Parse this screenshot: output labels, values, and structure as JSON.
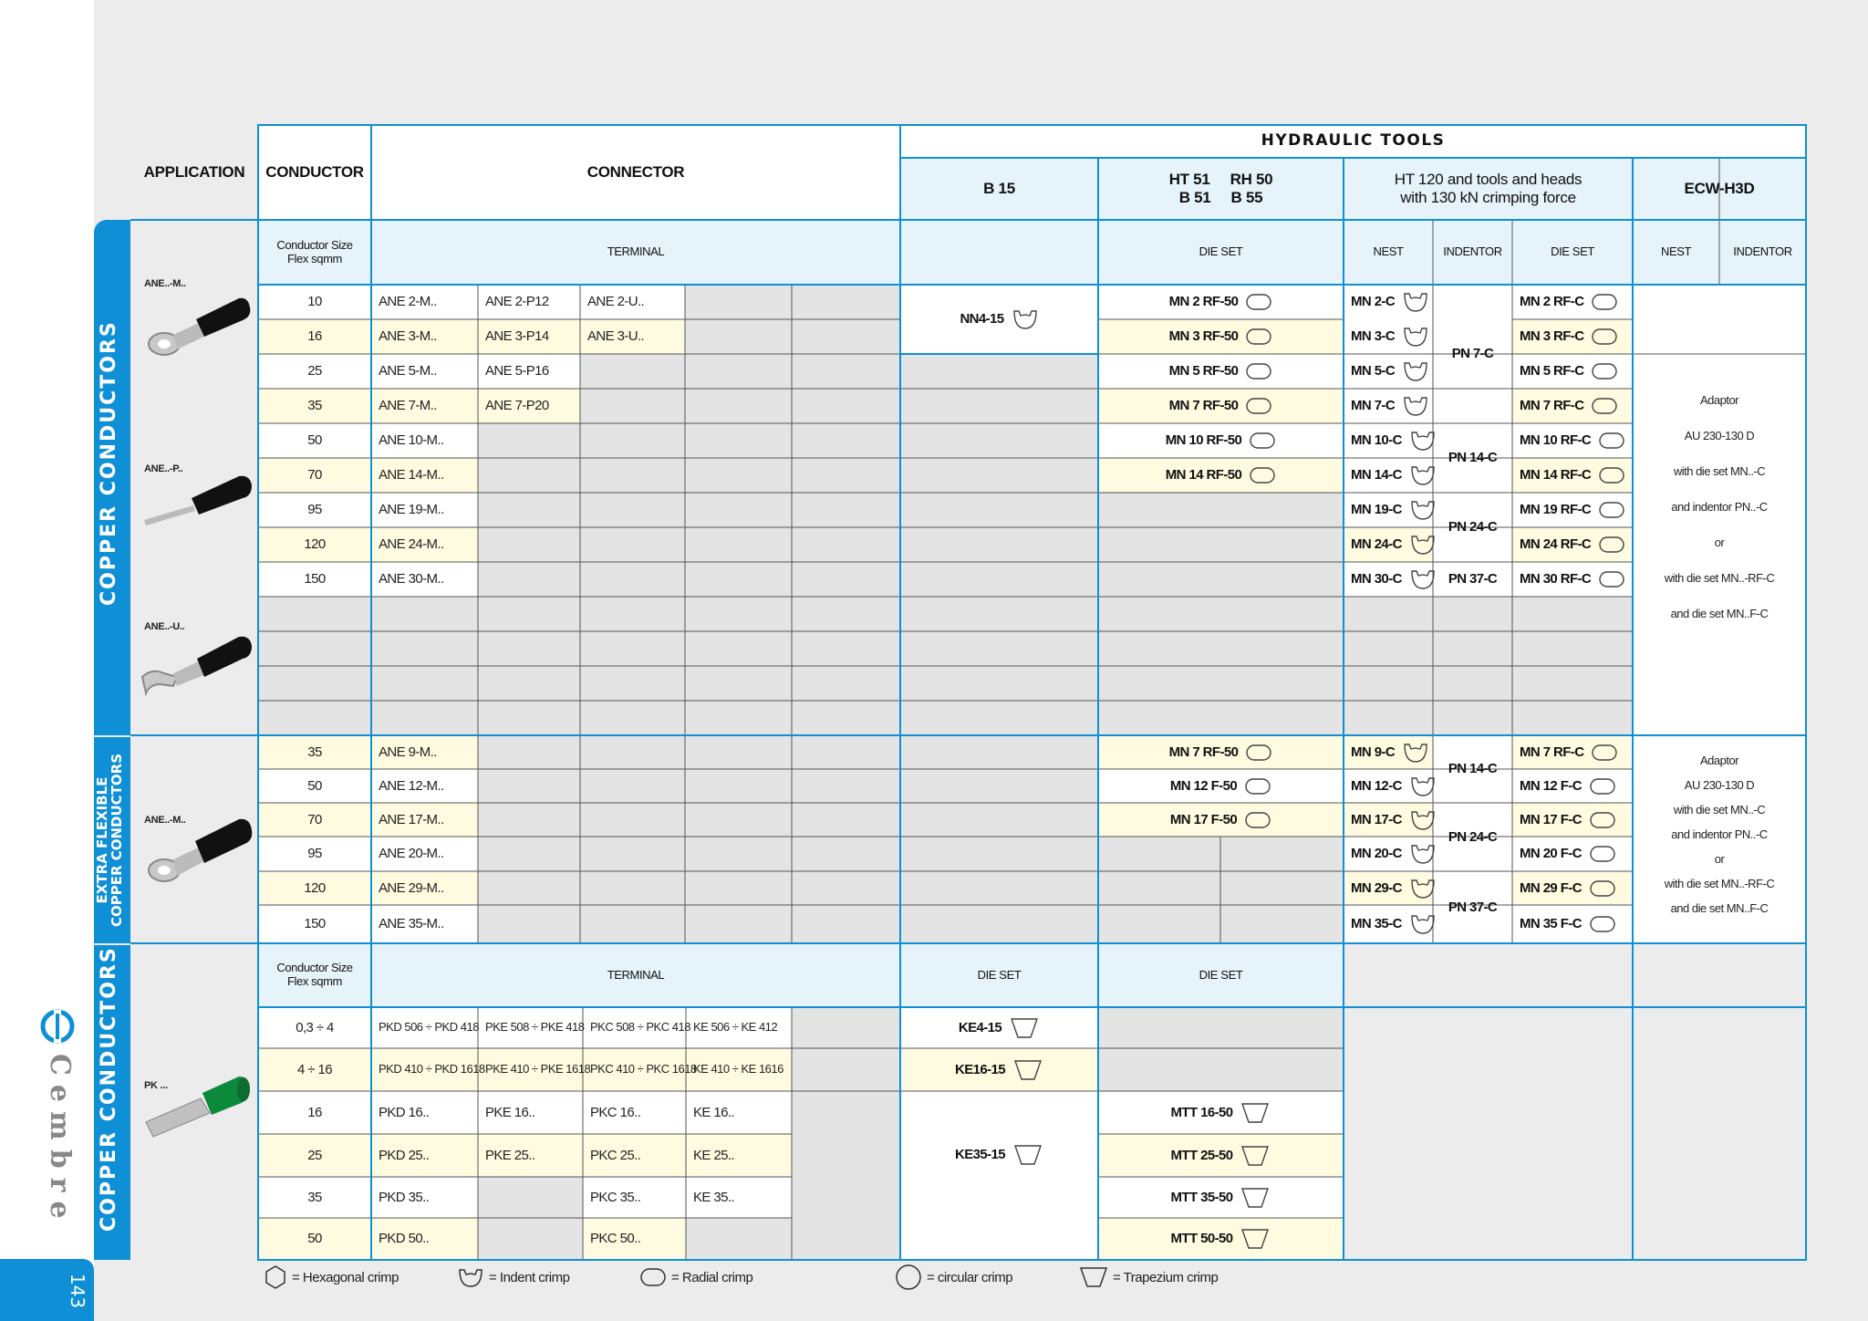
{
  "page_number": "143",
  "brand": "Cembre",
  "header": {
    "application": "APPLICATION",
    "conductor": "CONDUCTOR",
    "connector": "CONNECTOR",
    "hydraulic_tools": "HYDRAULIC TOOLS",
    "b15": "B 15",
    "ht51_line1": "HT 51     RH 50",
    "ht51_line2": "B 51     B 55",
    "ht120_line1": "HT 120 and tools and heads",
    "ht120_line2": "with 130 kN crimping force",
    "ecw": "ECW-H3D"
  },
  "subheader": {
    "conductor_size_1": "Conductor Size",
    "conductor_size_2": "Flex sqmm",
    "terminal": "TERMINAL",
    "die_set": "DIE SET",
    "nest": "NEST",
    "indentor": "INDENTOR"
  },
  "sections": {
    "copper_conductors": "COPPER CONDUCTORS",
    "extra_flexible_1": "EXTRA FLEXIBLE",
    "extra_flexible_2": "COPPER CONDUCTORS",
    "copper_conductors_2": "COPPER CONDUCTORS"
  },
  "product_labels": {
    "ane_m": "ANE..-M..",
    "ane_p": "ANE..-P..",
    "ane_u": "ANE..-U..",
    "ane_m2": "ANE..-M..",
    "pk": "PK ..."
  },
  "section1": {
    "rows": [
      {
        "size": "10",
        "c1": "ANE 2-M..",
        "c2": "ANE 2-P12",
        "c3": "ANE 2-U..",
        "die": "MN 2 RF-50",
        "nest": "MN 2-C",
        "ht_die": "MN 2 RF-C"
      },
      {
        "size": "16",
        "c1": "ANE 3-M..",
        "c2": "ANE 3-P14",
        "c3": "ANE 3-U..",
        "die": "MN 3 RF-50",
        "nest": "MN 3-C",
        "ht_die": "MN 3 RF-C"
      },
      {
        "size": "25",
        "c1": "ANE 5-M..",
        "c2": "ANE 5-P16",
        "c3": "",
        "die": "MN 5 RF-50",
        "nest": "MN 5-C",
        "ht_die": "MN 5 RF-C"
      },
      {
        "size": "35",
        "c1": "ANE 7-M..",
        "c2": "ANE 7-P20",
        "c3": "",
        "die": "MN 7 RF-50",
        "nest": "MN 7-C",
        "ht_die": "MN 7 RF-C"
      },
      {
        "size": "50",
        "c1": "ANE 10-M..",
        "c2": "",
        "c3": "",
        "die": "MN 10 RF-50",
        "nest": "MN 10-C",
        "ht_die": "MN 10 RF-C"
      },
      {
        "size": "70",
        "c1": "ANE 14-M..",
        "c2": "",
        "c3": "",
        "die": "MN 14 RF-50",
        "nest": "MN 14-C",
        "ht_die": "MN 14 RF-C"
      },
      {
        "size": "95",
        "c1": "ANE 19-M..",
        "c2": "",
        "c3": "",
        "die": "",
        "nest": "MN 19-C",
        "ht_die": "MN 19 RF-C"
      },
      {
        "size": "120",
        "c1": "ANE 24-M..",
        "c2": "",
        "c3": "",
        "die": "",
        "nest": "MN 24-C",
        "ht_die": "MN 24 RF-C"
      },
      {
        "size": "150",
        "c1": "ANE 30-M..",
        "c2": "",
        "c3": "",
        "die": "",
        "nest": "MN 30-C",
        "ht_die": "MN 30 RF-C"
      }
    ],
    "b15_die": "NN4-15",
    "indentors": [
      "PN 7-C",
      "PN 14-C",
      "PN 24-C",
      "PN 37-C"
    ],
    "ecw_note": [
      "Adaptor",
      "AU 230-130 D",
      "with die set MN..-C",
      "and indentor PN..-C",
      "or",
      "with die set MN..-RF-C",
      "and die set MN..F-C"
    ]
  },
  "section2": {
    "rows": [
      {
        "size": "35",
        "c1": "ANE 9-M..",
        "die": "MN 7 RF-50",
        "nest": "MN 9-C",
        "ht_die": "MN 7 RF-C"
      },
      {
        "size": "50",
        "c1": "ANE 12-M..",
        "die": "MN 12 F-50",
        "nest": "MN 12-C",
        "ht_die": "MN 12 F-C"
      },
      {
        "size": "70",
        "c1": "ANE 17-M..",
        "die": "MN 17 F-50",
        "nest": "MN 17-C",
        "ht_die": "MN 17 F-C"
      },
      {
        "size": "95",
        "c1": "ANE 20-M..",
        "die": "",
        "nest": "MN 20-C",
        "ht_die": "MN 20 F-C"
      },
      {
        "size": "120",
        "c1": "ANE 29-M..",
        "die": "",
        "nest": "MN 29-C",
        "ht_die": "MN 29 F-C"
      },
      {
        "size": "150",
        "c1": "ANE 35-M..",
        "die": "",
        "nest": "MN 35-C",
        "ht_die": "MN 35 F-C"
      }
    ],
    "indentors": [
      "PN 14-C",
      "PN 24-C",
      "PN 37-C"
    ],
    "ecw_note": [
      "Adaptor",
      "AU 230-130 D",
      "with die set MN..-C",
      "and indentor PN..-C",
      "or",
      "with die set MN..-RF-C",
      "and die set MN..F-C"
    ]
  },
  "section3": {
    "rows": [
      {
        "size": "0,3 ÷ 4",
        "c1": "PKD 506 ÷ PKD 418",
        "c2": "PKE 508 ÷ PKE 418",
        "c3": "PKC 508 ÷ PKC 418",
        "c4": "KE 506 ÷ KE 412",
        "b15": "KE4-15",
        "die": ""
      },
      {
        "size": "4 ÷ 16",
        "c1": "PKD 410 ÷ PKD 1618",
        "c2": "PKE 410 ÷ PKE 1618",
        "c3": "PKC 410 ÷ PKC 1618",
        "c4": "KE 410 ÷ KE 1616",
        "b15": "KE16-15",
        "die": ""
      },
      {
        "size": "16",
        "c1": "PKD 16..",
        "c2": "PKE 16..",
        "c3": "PKC 16..",
        "c4": "KE 16..",
        "b15": "",
        "die": "MTT 16-50"
      },
      {
        "size": "25",
        "c1": "PKD 25..",
        "c2": "PKE 25..",
        "c3": "PKC 25..",
        "c4": "KE 25..",
        "b15": "",
        "die": "MTT 25-50"
      },
      {
        "size": "35",
        "c1": "PKD 35..",
        "c2": "",
        "c3": "PKC 35..",
        "c4": "KE 35..",
        "b15": "",
        "die": "MTT 35-50"
      },
      {
        "size": "50",
        "c1": "PKD 50..",
        "c2": "",
        "c3": "PKC 50..",
        "c4": "",
        "b15": "",
        "die": "MTT 50-50"
      }
    ],
    "b15_merged": "KE35-15"
  },
  "legend": {
    "hexagonal": "= Hexagonal crimp",
    "indent": "= Indent crimp",
    "radial": "= Radial crimp",
    "circular": "= circular crimp",
    "trapezium": "= Trapezium crimp"
  },
  "colors": {
    "accent": "#0e8fd6",
    "row_highlight": "#fffbe0",
    "header_band": "#e6f3fb",
    "shaded": "#e4e4e4"
  }
}
